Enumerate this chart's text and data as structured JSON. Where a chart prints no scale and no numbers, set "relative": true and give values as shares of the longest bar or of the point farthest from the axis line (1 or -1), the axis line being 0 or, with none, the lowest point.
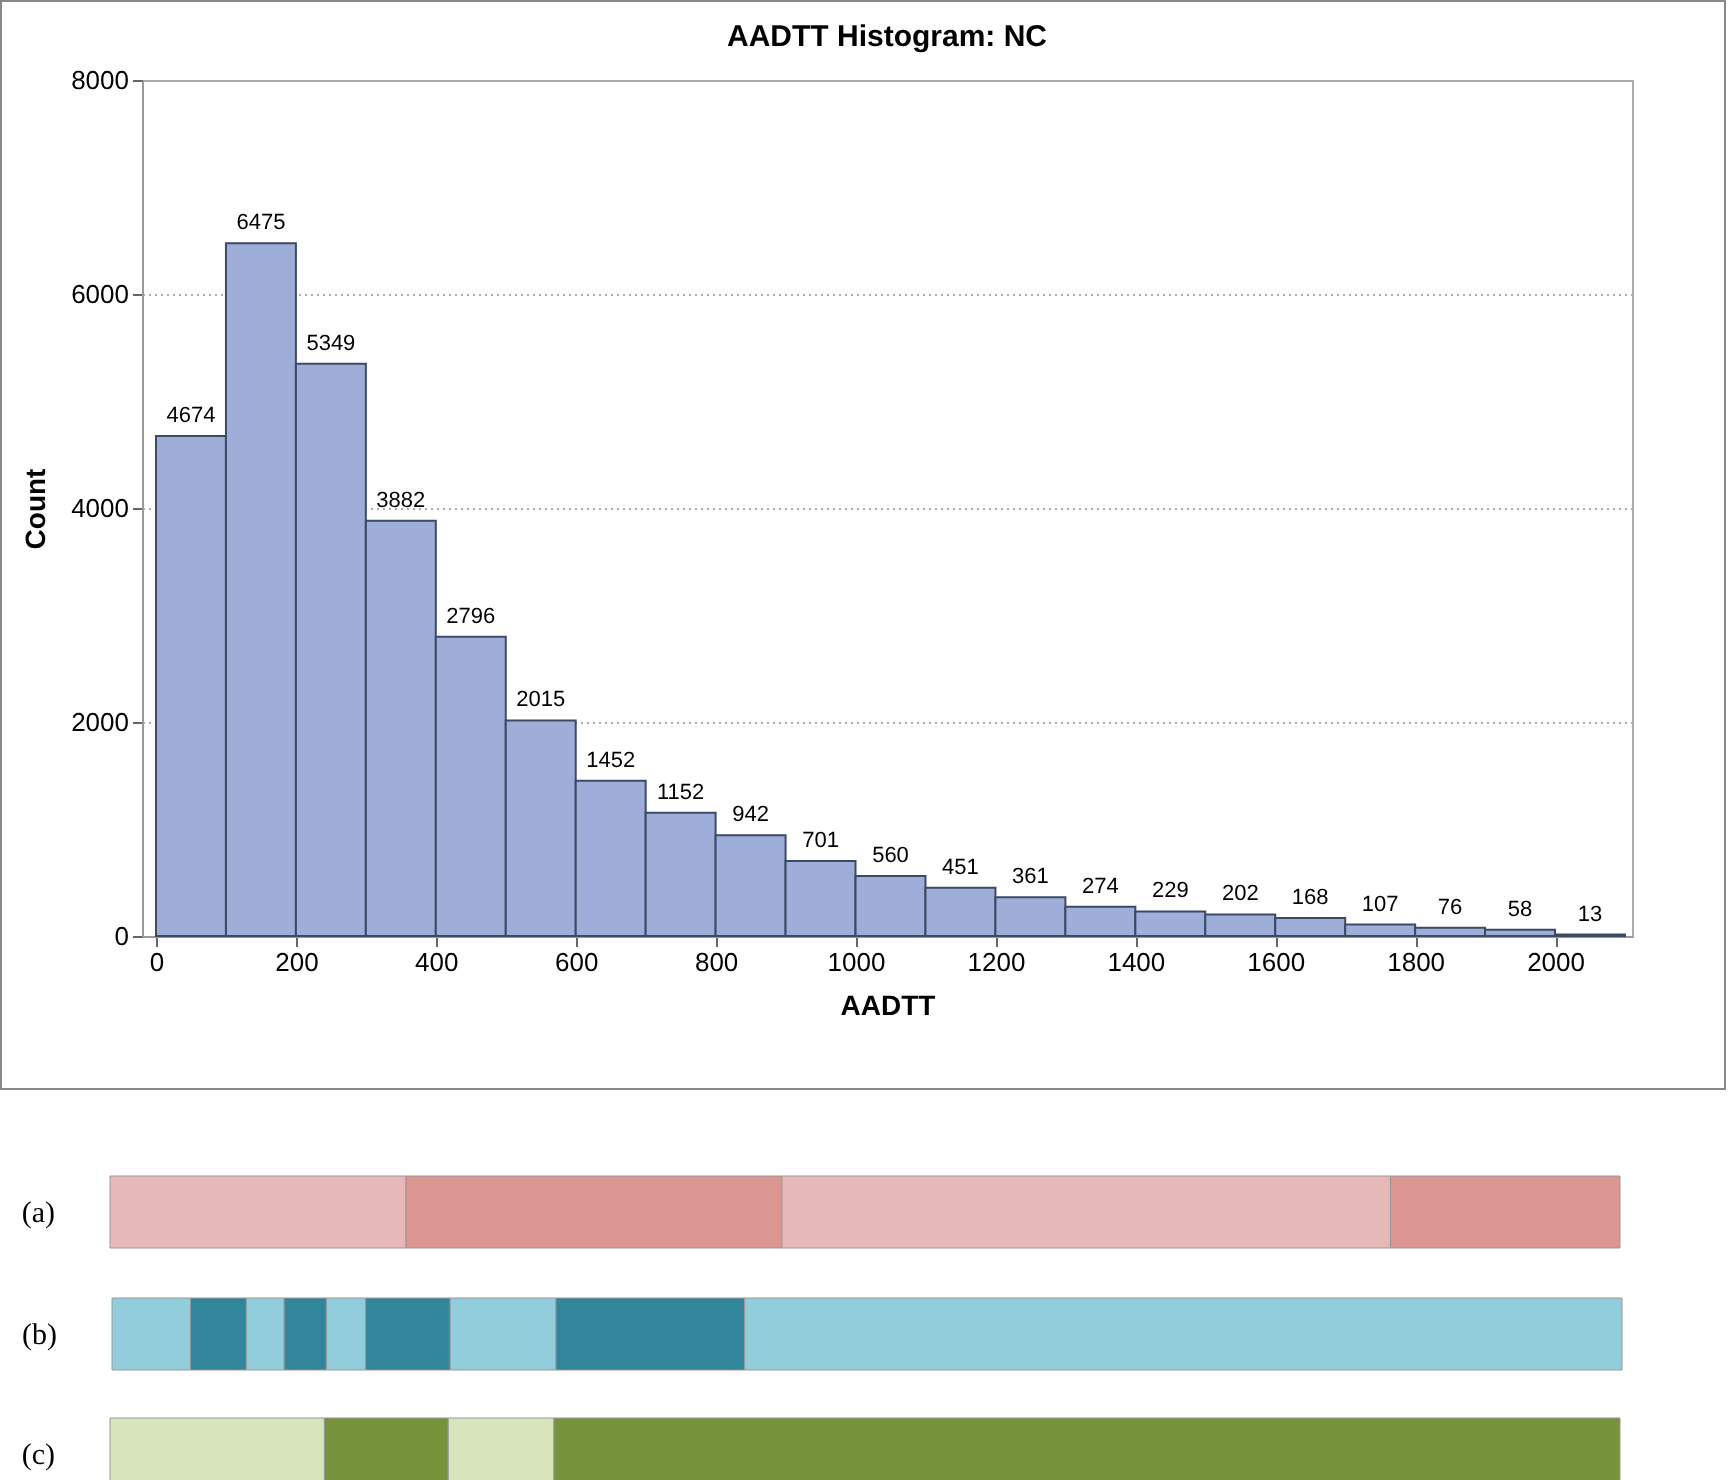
{
  "chart_data": [
    {
      "type": "histogram",
      "title": "AADTT Histogram: NC",
      "xlabel": "AADTT",
      "ylabel": "Count",
      "bins": [
        0,
        100,
        200,
        300,
        400,
        500,
        600,
        700,
        800,
        900,
        1000,
        1100,
        1200,
        1300,
        1400,
        1500,
        1600,
        1700,
        1800,
        1900,
        2000,
        2100
      ],
      "values": [
        4674,
        6475,
        5349,
        3882,
        2796,
        2015,
        1452,
        1152,
        942,
        701,
        560,
        451,
        361,
        274,
        229,
        202,
        168,
        107,
        76,
        58,
        13
      ],
      "color": "#9eaed8",
      "xlim": [
        -20,
        2110
      ],
      "xticks": [
        0,
        200,
        400,
        600,
        800,
        1000,
        1200,
        1400,
        1600,
        1800,
        2000
      ],
      "ylim": [
        0,
        8000
      ],
      "yticks": [
        0,
        2000,
        4000,
        6000,
        8000
      ],
      "grid": "y",
      "data_labels": true
    },
    {
      "type": "bar",
      "orientation": "horizontal",
      "stacked": true,
      "relative": true,
      "categories": [
        "(a)"
      ],
      "series": [
        {
          "color": "#e6b8b7",
          "values": [
            0.196
          ]
        },
        {
          "color": "#da9690",
          "values": [
            0.249
          ]
        },
        {
          "color": "#e6b8b7",
          "values": [
            0.403
          ]
        },
        {
          "color": "#da9690",
          "values": [
            0.152
          ]
        }
      ]
    },
    {
      "type": "bar",
      "orientation": "horizontal",
      "stacked": true,
      "relative": true,
      "categories": [
        "(b)"
      ],
      "series": [
        {
          "color": "#92cddc",
          "values": [
            0.052
          ]
        },
        {
          "color": "#31869b",
          "values": [
            0.037
          ]
        },
        {
          "color": "#92cddc",
          "values": [
            0.025
          ]
        },
        {
          "color": "#31869b",
          "values": [
            0.028
          ]
        },
        {
          "color": "#92cddc",
          "values": [
            0.026
          ]
        },
        {
          "color": "#31869b",
          "values": [
            0.056
          ]
        },
        {
          "color": "#92cddc",
          "values": [
            0.07
          ]
        },
        {
          "color": "#31869b",
          "values": [
            0.125
          ]
        },
        {
          "color": "#92cddc",
          "values": [
            0.581
          ]
        }
      ]
    },
    {
      "type": "bar",
      "orientation": "horizontal",
      "stacked": true,
      "relative": true,
      "categories": [
        "(c)"
      ],
      "series": [
        {
          "color": "#d8e4bc",
          "values": [
            0.142
          ]
        },
        {
          "color": "#76933c",
          "values": [
            0.082
          ]
        },
        {
          "color": "#d8e4bc",
          "values": [
            0.07
          ]
        },
        {
          "color": "#76933c",
          "values": [
            0.706
          ]
        }
      ]
    }
  ]
}
